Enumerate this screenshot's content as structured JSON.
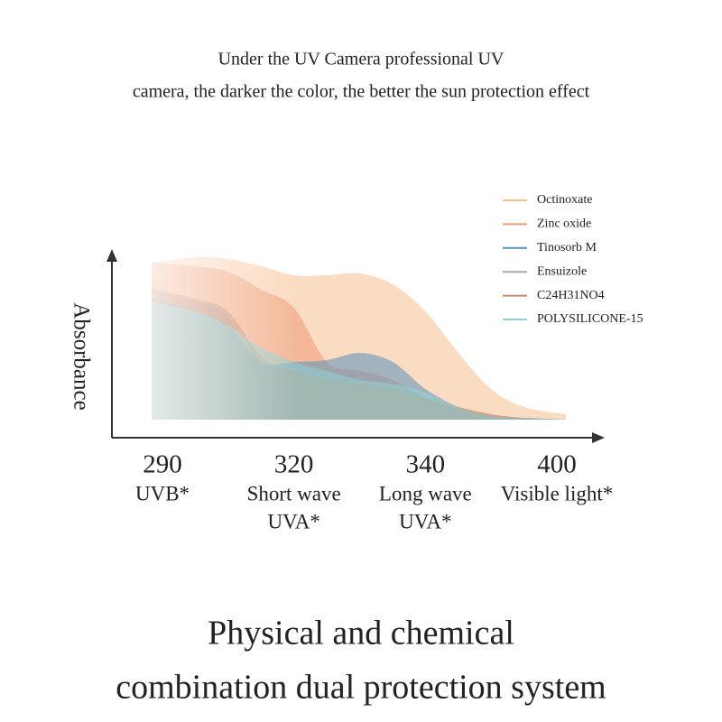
{
  "header": {
    "lines": [
      "Under the UV Camera professional UV",
      "camera, the darker the color, the better the sun protection effect"
    ]
  },
  "chart_data": {
    "type": "area",
    "y_label": "Absorbance",
    "categories": [
      "290",
      null,
      null,
      null,
      "320",
      null,
      null,
      null,
      "340",
      null,
      null,
      null,
      "400"
    ],
    "sublabels": [
      [
        "UVB*"
      ],
      null,
      null,
      null,
      [
        "Short wave",
        "UVA*"
      ],
      null,
      null,
      null,
      [
        "Long wave",
        "UVA*"
      ],
      null,
      null,
      null,
      [
        "Visible light*"
      ]
    ],
    "ylim": [
      0,
      100
    ],
    "series": [
      {
        "name": "Octinoxate",
        "color": "#f6c08f",
        "values": [
          97,
          100,
          99,
          95,
          90,
          90,
          91,
          85,
          70,
          47,
          27,
          17,
          13
        ]
      },
      {
        "name": "Zinc oxide",
        "color": "#ee9a78",
        "values": [
          97,
          95,
          92,
          82,
          72,
          42,
          37,
          32,
          22,
          17,
          13,
          11,
          10
        ]
      },
      {
        "name": "Tinosorb M",
        "color": "#5a91b9",
        "values": [
          77,
          70,
          62,
          42,
          42,
          43,
          47,
          42,
          27,
          17,
          12,
          11,
          10
        ]
      },
      {
        "name": "Ensuizole",
        "color": "#a7a8b2",
        "values": [
          82,
          75,
          67,
          27,
          22,
          20,
          18,
          16,
          14,
          12,
          11,
          11,
          10
        ]
      },
      {
        "name": "C24H31NO4",
        "color": "#c68a6c",
        "values": [
          83,
          77,
          70,
          45,
          37,
          32,
          30,
          27,
          22,
          17,
          13,
          11,
          10
        ]
      },
      {
        "name": "POLYSILICONE-15",
        "color": "#8fd4d5",
        "values": [
          75,
          70,
          62,
          50,
          42,
          37,
          32,
          30,
          25,
          17,
          12,
          11,
          10
        ]
      }
    ]
  },
  "footer": {
    "lines": [
      "Physical and chemical",
      "combination dual protection system"
    ]
  }
}
